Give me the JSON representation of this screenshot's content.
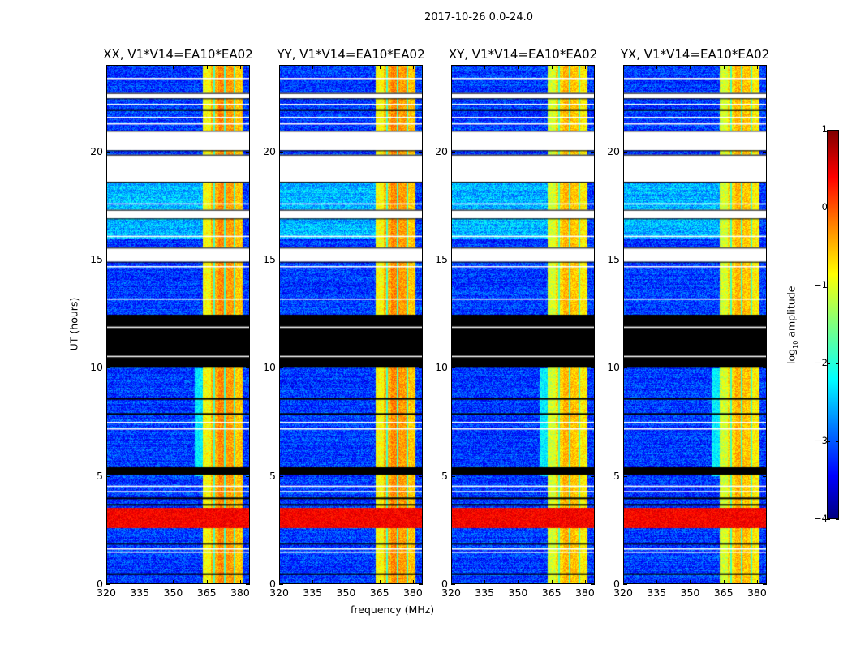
{
  "chart_data": {
    "type": "heatmap",
    "title": "2017-10-26 0.0-24.0",
    "xlabel": "frequency (MHz)",
    "ylabel": "UT (hours)",
    "xlim": [
      320,
      384.4
    ],
    "ylim": [
      0,
      24
    ],
    "xticks": [
      "320",
      "335",
      "350",
      "365",
      "380"
    ],
    "yticks": [
      "0",
      "5",
      "10",
      "15",
      "20"
    ],
    "panels": [
      {
        "title": "XX, V1*V14=EA10*EA02"
      },
      {
        "title": "YY, V1*V14=EA10*EA02"
      },
      {
        "title": "XY, V1*V14=EA10*EA02"
      },
      {
        "title": "YX, V1*V14=EA10*EA02"
      }
    ],
    "colorbar": {
      "label_main": "log",
      "label_sub": "10",
      "label_rest": " amplitude",
      "range": [
        -4,
        1
      ],
      "ticks": [
        "1",
        "0",
        "−1",
        "−2",
        "−3",
        "−4"
      ],
      "colormap": "jet"
    },
    "background_log_amp": -3.1,
    "bright_band": {
      "freq_range_mhz": [
        363,
        381
      ],
      "log_amp": -0.6
    },
    "rfi_rows": [
      {
        "hours": [
          2.6,
          3.55
        ],
        "log_amp": 0.4
      }
    ],
    "no_data_hours": [
      [
        22.45,
        22.7
      ],
      [
        20.05,
        20.95
      ],
      [
        18.6,
        19.85
      ],
      [
        16.9,
        17.3
      ],
      [
        14.9,
        15.55
      ]
    ],
    "flagged_zero_hours": [
      [
        10.0,
        12.45
      ],
      [
        5.05,
        5.4
      ]
    ],
    "thin_zero_lines_hours": [
      0.5,
      1.9,
      3.7,
      4.0,
      7.9,
      8.6,
      10.2,
      21.95
    ],
    "thin_gap_lines_hours": [
      1.5,
      1.65,
      4.3,
      4.55,
      7.2,
      7.5,
      10.55,
      11.9,
      13.2,
      14.7,
      16.1,
      17.6,
      21.3,
      21.6,
      22.2,
      23.4
    ]
  }
}
